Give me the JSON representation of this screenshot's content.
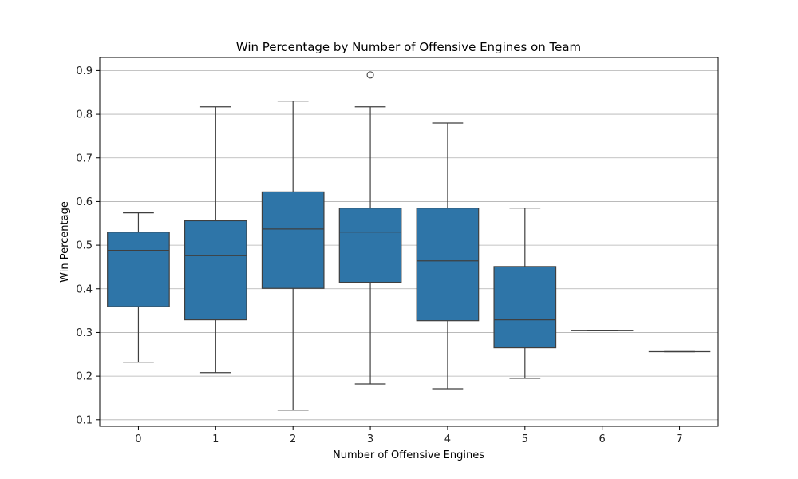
{
  "chart_data": {
    "type": "boxplot",
    "title": "Win Percentage by Number of Offensive Engines on Team",
    "xlabel": "Number of Offensive Engines",
    "ylabel": "Win Percentage",
    "ylim": [
      0.085,
      0.93
    ],
    "yticks": [
      0.1,
      0.2,
      0.3,
      0.4,
      0.5,
      0.6,
      0.7,
      0.8,
      0.9
    ],
    "ytick_labels": [
      "0.1",
      "0.2",
      "0.3",
      "0.4",
      "0.5",
      "0.6",
      "0.7",
      "0.8",
      "0.9"
    ],
    "grid": "y",
    "box_color": "#2e75a8",
    "line_color": "#3f3f3f",
    "categories": [
      "0",
      "1",
      "2",
      "3",
      "4",
      "5",
      "6",
      "7"
    ],
    "boxes": [
      {
        "category": "0",
        "whisker_low": 0.232,
        "q1": 0.359,
        "median": 0.488,
        "q3": 0.53,
        "whisker_high": 0.574,
        "outliers": []
      },
      {
        "category": "1",
        "whisker_low": 0.208,
        "q1": 0.329,
        "median": 0.476,
        "q3": 0.556,
        "whisker_high": 0.817,
        "outliers": []
      },
      {
        "category": "2",
        "whisker_low": 0.122,
        "q1": 0.401,
        "median": 0.537,
        "q3": 0.622,
        "whisker_high": 0.83,
        "outliers": []
      },
      {
        "category": "3",
        "whisker_low": 0.182,
        "q1": 0.415,
        "median": 0.53,
        "q3": 0.585,
        "whisker_high": 0.817,
        "outliers": [
          0.89
        ]
      },
      {
        "category": "4",
        "whisker_low": 0.171,
        "q1": 0.327,
        "median": 0.464,
        "q3": 0.585,
        "whisker_high": 0.78,
        "outliers": []
      },
      {
        "category": "5",
        "whisker_low": 0.195,
        "q1": 0.265,
        "median": 0.329,
        "q3": 0.451,
        "whisker_high": 0.585,
        "outliers": []
      },
      {
        "category": "6",
        "whisker_low": 0.305,
        "q1": 0.305,
        "median": 0.305,
        "q3": 0.305,
        "whisker_high": 0.305,
        "outliers": []
      },
      {
        "category": "7",
        "whisker_low": 0.256,
        "q1": 0.256,
        "median": 0.256,
        "q3": 0.256,
        "whisker_high": 0.256,
        "outliers": []
      }
    ]
  }
}
